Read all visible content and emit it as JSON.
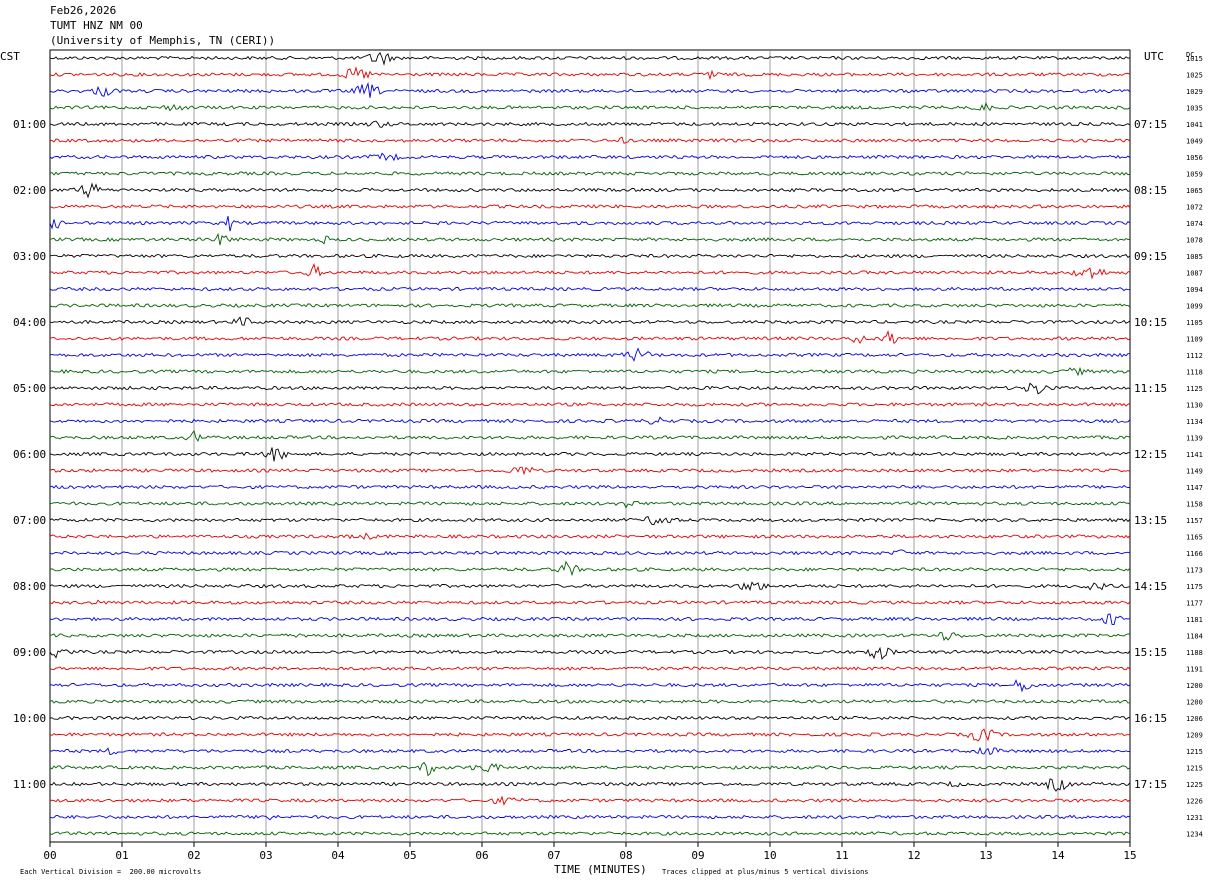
{
  "header": {
    "date": "Feb26,2026",
    "station": "TUMT HNZ NM 00",
    "institution": "(University of Memphis, TN (CERI))"
  },
  "left_zone_label": "CST",
  "right_zone_label": "UTC",
  "dc_label": "DC",
  "footer": {
    "scale_note": "Each Vertical Division =  200.00 microvolts",
    "xlabel": "TIME (MINUTES)",
    "clip_note": "Traces clipped at plus/minus 5 vertical divisions"
  },
  "chart_data": {
    "type": "line",
    "title": "Feb26,2026  TUMT HNZ NM 00",
    "xlabel": "TIME (MINUTES)",
    "xlim": [
      0,
      15
    ],
    "x_ticks": [
      "00",
      "01",
      "02",
      "03",
      "04",
      "05",
      "06",
      "07",
      "08",
      "09",
      "10",
      "11",
      "12",
      "13",
      "14",
      "15"
    ],
    "grid": true,
    "trace_colors": [
      "#000000",
      "#e00000",
      "#0000e0",
      "#006000"
    ],
    "rows": 48,
    "left_hour_labels": [
      "01:00",
      "02:00",
      "03:00",
      "04:00",
      "05:00",
      "06:00",
      "07:00",
      "08:00",
      "09:00",
      "10:00",
      "11:00"
    ],
    "right_hour_labels": [
      "07:15",
      "08:15",
      "09:15",
      "10:15",
      "11:15",
      "12:15",
      "13:15",
      "14:15",
      "15:15",
      "16:15",
      "17:15"
    ],
    "dc_offsets": [
      "1015",
      "1025",
      "1029",
      "1035",
      "1041",
      "1049",
      "1056",
      "1059",
      "1065",
      "1072",
      "1074",
      "1078",
      "1085",
      "1087",
      "1094",
      "1099",
      "1105",
      "1109",
      "1112",
      "1118",
      "1125",
      "1130",
      "1134",
      "1139",
      "1141",
      "1149",
      "1147",
      "1158",
      "1157",
      "1165",
      "1166",
      "1173",
      "1175",
      "1177",
      "1181",
      "1184",
      "1188",
      "1191",
      "1200",
      "1200",
      "1206",
      "1209",
      "1215",
      "1215",
      "1225",
      "1226",
      "1231",
      "1234"
    ]
  }
}
